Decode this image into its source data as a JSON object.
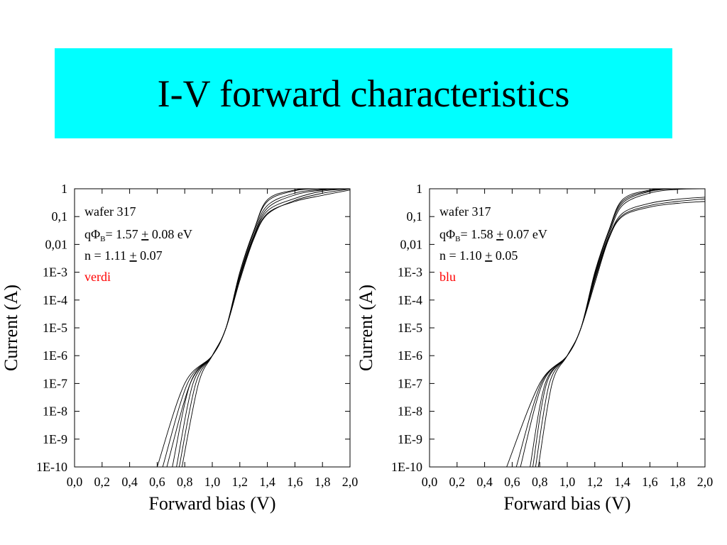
{
  "slide": {
    "title": "I-V forward characteristics",
    "title_bg": "#00ffff"
  },
  "chart_data": [
    {
      "type": "line",
      "xlabel": "Forward bias (V)",
      "ylabel": "Current (A)",
      "xlim": [
        0,
        2.0
      ],
      "ylim_log10": [
        -10,
        0
      ],
      "y_scale": "log",
      "grid": false,
      "x_ticks": [
        "0,0",
        "0,2",
        "0,4",
        "0,6",
        "0,8",
        "1,0",
        "1,2",
        "1,4",
        "1,6",
        "1,8",
        "2,0"
      ],
      "y_ticks": [
        "1E-10",
        "1E-9",
        "1E-8",
        "1E-7",
        "1E-6",
        "1E-5",
        "1E-4",
        "1E-3",
        "0,01",
        "0,1",
        "1"
      ],
      "annotation": {
        "line1": "wafer 317",
        "line2_q": "qΦ",
        "line2_sub": "B",
        "line2_val": "= 1.57 ",
        "line2_pm": "+",
        "line2_err": " 0.08 eV",
        "line3_val": "n = 1.11 ",
        "line3_pm": "+",
        "line3_err": " 0.07",
        "label": "verdi",
        "label_color": "#ff0000"
      },
      "series": [
        {
          "x": [
            0.6,
            0.8,
            1.0,
            1.1,
            1.2,
            1.3,
            1.4,
            1.6,
            1.8,
            2.0
          ],
          "y": [
            1e-10,
            1e-07,
            1e-06,
            1e-05,
            0.0005,
            0.015,
            0.12,
            0.38,
            0.69,
            0.98
          ]
        },
        {
          "x": [
            0.64,
            0.82,
            1.0,
            1.1,
            1.2,
            1.3,
            1.4,
            1.6,
            1.8,
            2.0
          ],
          "y": [
            1e-10,
            1e-07,
            1e-06,
            1e-05,
            0.0006,
            0.016,
            0.13,
            0.35,
            0.58,
            0.9
          ]
        },
        {
          "x": [
            0.67,
            0.84,
            1.0,
            1.1,
            1.2,
            1.3,
            1.4,
            1.6,
            1.8,
            2.0
          ],
          "y": [
            1e-10,
            1e-07,
            1e-06,
            1e-05,
            0.0007,
            0.018,
            0.16,
            0.45,
            0.82,
            1.0
          ]
        },
        {
          "x": [
            0.71,
            0.84,
            1.0,
            1.1,
            1.2,
            1.3,
            1.4,
            1.6,
            1.8,
            2.0
          ],
          "y": [
            1e-10,
            1e-07,
            1e-06,
            1e-05,
            0.0007,
            0.02,
            0.2,
            0.6,
            0.9,
            1.0
          ]
        },
        {
          "x": [
            0.74,
            0.86,
            1.0,
            1.1,
            1.2,
            1.3,
            1.4,
            1.6,
            1.8,
            2.0
          ],
          "y": [
            1e-10,
            1e-07,
            1e-06,
            1e-05,
            0.0008,
            0.025,
            0.25,
            0.7,
            0.95,
            1.0
          ]
        },
        {
          "x": [
            0.76,
            0.88,
            1.0,
            1.1,
            1.2,
            1.3,
            1.4,
            1.6,
            1.8,
            2.0
          ],
          "y": [
            1e-10,
            1e-07,
            1e-06,
            1e-05,
            0.001,
            0.03,
            0.35,
            0.85,
            1.0,
            1.0
          ]
        },
        {
          "x": [
            0.78,
            0.9,
            1.0,
            1.1,
            1.2,
            1.3,
            1.4,
            1.6,
            1.8,
            2.0
          ],
          "y": [
            1e-10,
            1e-07,
            1e-06,
            1e-05,
            0.001,
            0.03,
            0.4,
            0.9,
            1.0,
            1.0
          ]
        }
      ]
    },
    {
      "type": "line",
      "xlabel": "Forward bias (V)",
      "ylabel": "Current (A)",
      "xlim": [
        0,
        2.0
      ],
      "ylim_log10": [
        -10,
        0
      ],
      "y_scale": "log",
      "grid": false,
      "x_ticks": [
        "0,0",
        "0,2",
        "0,4",
        "0,6",
        "0,8",
        "1,0",
        "1,2",
        "1,4",
        "1,6",
        "1,8",
        "2,0"
      ],
      "y_ticks": [
        "1E-10",
        "1E-9",
        "1E-8",
        "1E-7",
        "1E-6",
        "1E-5",
        "1E-4",
        "1E-3",
        "0,01",
        "0,1",
        "1"
      ],
      "annotation": {
        "line1": "wafer 317",
        "line2_q": "qΦ",
        "line2_sub": "B",
        "line2_val": "= 1.58 ",
        "line2_pm": "+",
        "line2_err": " 0.07 eV",
        "line3_val": "n = 1.10 ",
        "line3_pm": "+",
        "line3_err": " 0.05",
        "label": "blu",
        "label_color": "#ff0000"
      },
      "series": [
        {
          "x": [
            0.56,
            0.8,
            1.0,
            1.1,
            1.2,
            1.3,
            1.4,
            1.6,
            1.8,
            2.0
          ],
          "y": [
            1e-10,
            1e-07,
            1e-06,
            1e-05,
            0.0004,
            0.015,
            0.1,
            0.22,
            0.3,
            0.35
          ]
        },
        {
          "x": [
            0.63,
            0.81,
            1.0,
            1.1,
            1.2,
            1.3,
            1.4,
            1.6,
            1.8,
            2.0
          ],
          "y": [
            1e-10,
            1e-07,
            1e-06,
            1e-05,
            0.0005,
            0.016,
            0.11,
            0.25,
            0.35,
            0.43
          ]
        },
        {
          "x": [
            0.66,
            0.82,
            1.0,
            1.1,
            1.2,
            1.3,
            1.4,
            1.6,
            1.8,
            2.0
          ],
          "y": [
            1e-10,
            1e-07,
            1e-06,
            1e-05,
            0.0006,
            0.017,
            0.13,
            0.3,
            0.42,
            0.5
          ]
        },
        {
          "x": [
            0.73,
            0.84,
            1.0,
            1.1,
            1.2,
            1.3,
            1.4,
            1.6,
            1.8,
            2.0
          ],
          "y": [
            1e-10,
            1e-07,
            1e-06,
            1e-05,
            0.0007,
            0.02,
            0.25,
            0.7,
            0.95,
            1.0
          ]
        },
        {
          "x": [
            0.75,
            0.85,
            1.0,
            1.1,
            1.2,
            1.3,
            1.4,
            1.6,
            1.8,
            2.0
          ],
          "y": [
            1e-10,
            1e-07,
            1e-06,
            1e-05,
            0.0008,
            0.025,
            0.3,
            0.8,
            1.0,
            1.0
          ]
        },
        {
          "x": [
            0.77,
            0.87,
            1.0,
            1.1,
            1.2,
            1.3,
            1.4,
            1.6,
            1.8,
            2.0
          ],
          "y": [
            1e-10,
            1e-07,
            1e-06,
            1e-05,
            0.0009,
            0.03,
            0.35,
            0.85,
            1.0,
            1.0
          ]
        },
        {
          "x": [
            0.79,
            0.89,
            1.0,
            1.1,
            1.2,
            1.3,
            1.4,
            1.6,
            1.8,
            2.0
          ],
          "y": [
            1e-10,
            1e-07,
            1e-06,
            1e-05,
            0.001,
            0.03,
            0.4,
            0.9,
            1.0,
            1.0
          ]
        }
      ]
    }
  ]
}
